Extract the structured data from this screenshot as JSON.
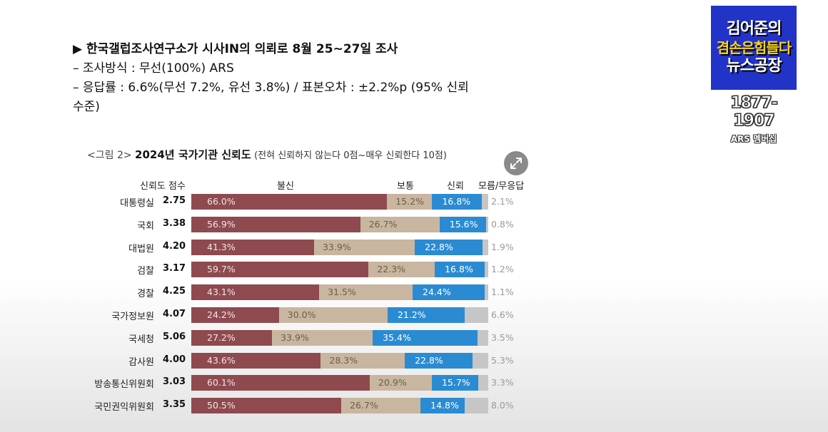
{
  "intro": {
    "lines": [
      "▶ 한국갤럽조사연구소가 시사IN의 의뢰로 8월 25~27일 조사",
      "– 조사방식 : 무선(100%) ARS",
      "– 응답률 : 6.6%(무선 7.2%, 유선 3.8%) / 표본오차 : ±2.2%p (95% 신뢰",
      "수준)"
    ]
  },
  "logo": {
    "line1": "김어준의",
    "line2": "겸손은힘들다",
    "line3": "뉴스공장",
    "years": "1877-1907",
    "sub": "ARS 멤버십"
  },
  "chart_title": {
    "fig": "<그림 2>",
    "main": "2024년 국가기관 신뢰도",
    "note": "(전혀 신뢰하지 않는다 0점~매우 신뢰한다 10점)"
  },
  "expand_icon": "expand-arrows-icon",
  "colors": {
    "distrust": "#8e4a4f",
    "neutral": "#c9b6a0",
    "trust": "#2a8bd2",
    "dontknow": "#c6c6c6"
  },
  "chart_data": {
    "type": "bar",
    "stacked": "horizontal",
    "score_header": "신뢰도 점수",
    "series_names": [
      "불신",
      "보통",
      "신뢰",
      "모름/무응답"
    ],
    "categories": [
      "대통령실",
      "국회",
      "대법원",
      "검찰",
      "경찰",
      "국가정보원",
      "국세청",
      "감사원",
      "방송통신위원회",
      "국민권익위원회"
    ],
    "scores": [
      "2.75",
      "3.38",
      "4.20",
      "3.17",
      "4.25",
      "4.07",
      "5.06",
      "4.00",
      "3.03",
      "3.35"
    ],
    "series": [
      {
        "name": "불신",
        "values": [
          66.0,
          56.9,
          41.3,
          59.7,
          43.1,
          24.2,
          27.2,
          43.6,
          60.1,
          50.5
        ],
        "labels": [
          "66.0%",
          "56.9%",
          "41.3%",
          "59.7%",
          "43.1%",
          "24.2%",
          "27.2%",
          "43.6%",
          "60.1%",
          "50.5%"
        ]
      },
      {
        "name": "보통",
        "values": [
          15.2,
          26.7,
          33.9,
          22.3,
          31.5,
          30.0,
          33.9,
          28.3,
          20.9,
          26.7
        ],
        "labels": [
          "15.2%",
          "26.7%",
          "33.9%",
          "22.3%",
          "31.5%",
          "30.0%",
          "33.9%",
          "28.3%",
          "20.9%",
          "26.7%"
        ]
      },
      {
        "name": "신뢰",
        "values": [
          16.8,
          15.6,
          22.8,
          16.8,
          24.4,
          21.2,
          35.4,
          22.8,
          15.7,
          14.8
        ],
        "labels": [
          "16.8%",
          "15.6%",
          "22.8%",
          "16.8%",
          "24.4%",
          "21.2%",
          "35.4%",
          "22.8%",
          "15.7%",
          "14.8%"
        ]
      },
      {
        "name": "모름/무응답",
        "values": [
          2.1,
          0.8,
          1.9,
          1.2,
          1.1,
          6.6,
          3.5,
          5.3,
          3.3,
          8.0
        ],
        "labels": [
          "2.1%",
          "0.8%",
          "1.9%",
          "1.2%",
          "1.1%",
          "6.6%",
          "3.5%",
          "5.3%",
          "3.3%",
          "8.0%"
        ]
      }
    ]
  }
}
